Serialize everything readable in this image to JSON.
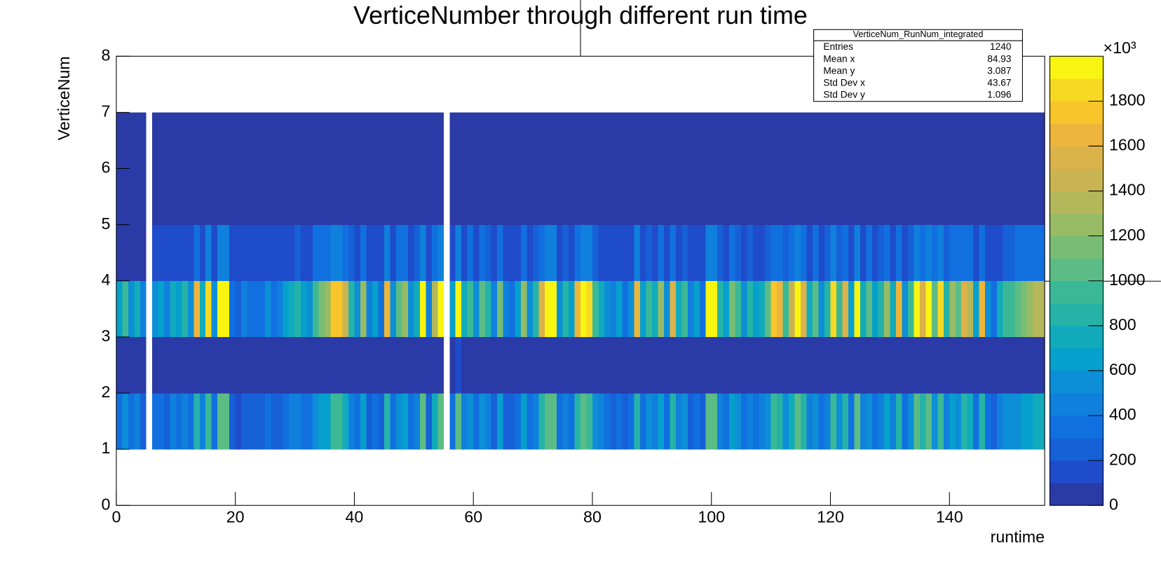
{
  "chart_data": {
    "type": "heatmap",
    "title": "VerticeNumber through different run time",
    "xlabel": "runtime",
    "ylabel": "VerticeNum",
    "xlim": [
      0,
      156
    ],
    "ylim": [
      0,
      8
    ],
    "xticks": [
      0,
      20,
      40,
      60,
      80,
      100,
      120,
      140
    ],
    "yticks": [
      0,
      1,
      2,
      3,
      4,
      5,
      6,
      7,
      8
    ],
    "ybins": [
      1,
      2,
      3,
      4,
      5,
      6,
      7
    ],
    "zlim": [
      0,
      2000
    ],
    "zticks": [
      0,
      200,
      400,
      600,
      800,
      1000,
      1200,
      1400,
      1600,
      1800
    ],
    "z_scale_label": "×10³",
    "palette": [
      "#2a3aa6",
      "#1f4ccb",
      "#1660d8",
      "#1170e0",
      "#0f80dc",
      "#0c8fd6",
      "#06a0cc",
      "#11abbb",
      "#25b3a8",
      "#3bb997",
      "#5bbc85",
      "#79bd74",
      "#98bb66",
      "#b4b85a",
      "#cab452",
      "#dcb24b",
      "#edb53b",
      "#f8c52a",
      "#f7d823",
      "#f8f510"
    ],
    "stats": {
      "title": "VerticeNum_RunNum_integrated",
      "rows": [
        {
          "label": "Entries",
          "value": 1240
        },
        {
          "label": "Mean x",
          "value": 84.93
        },
        {
          "label": "Mean y",
          "value": 3.087
        },
        {
          "label": "Std Dev x",
          "value": 43.67
        },
        {
          "label": "Std Dev y",
          "value": 1.096
        }
      ]
    },
    "values": [
      [
        300,
        500,
        300,
        400,
        200,
        null,
        300,
        300,
        200,
        400,
        300,
        400,
        300,
        800,
        400,
        900,
        300,
        1000,
        1000,
        200,
        100,
        200,
        200,
        200,
        200,
        300,
        200,
        200,
        300,
        400,
        400,
        300,
        300,
        500,
        600,
        600,
        900,
        900,
        700,
        400,
        300,
        600,
        200,
        300,
        200,
        800,
        300,
        500,
        600,
        300,
        400,
        1000,
        200,
        700,
        1000,
        null,
        300,
        1000,
        400,
        500,
        300,
        500,
        400,
        200,
        600,
        200,
        200,
        300,
        600,
        300,
        400,
        800,
        1000,
        1000,
        300,
        400,
        300,
        800,
        1000,
        900,
        500,
        400,
        300,
        200,
        300,
        200,
        300,
        800,
        300,
        500,
        400,
        600,
        300,
        800,
        400,
        500,
        200,
        300,
        200,
        1000,
        1000,
        400,
        300,
        600,
        500,
        300,
        400,
        300,
        400,
        500,
        900,
        800,
        500,
        700,
        1000,
        800,
        400,
        500,
        300,
        400,
        900,
        500,
        800,
        300,
        1000,
        400,
        500,
        300,
        400,
        600,
        400,
        800,
        300,
        500,
        1000,
        800,
        1000,
        500,
        900,
        400,
        600,
        500,
        800,
        700,
        300,
        800,
        300,
        200,
        400,
        500,
        500,
        500,
        600,
        600,
        700,
        700
      ],
      [
        30,
        30,
        30,
        30,
        30,
        null,
        30,
        30,
        30,
        30,
        30,
        30,
        30,
        30,
        30,
        30,
        30,
        30,
        30,
        30,
        30,
        30,
        30,
        30,
        30,
        30,
        30,
        30,
        30,
        30,
        30,
        30,
        30,
        30,
        30,
        30,
        30,
        30,
        30,
        30,
        30,
        30,
        30,
        30,
        30,
        30,
        30,
        30,
        30,
        30,
        30,
        30,
        30,
        30,
        30,
        null,
        30,
        150,
        30,
        30,
        30,
        30,
        30,
        30,
        30,
        30,
        30,
        30,
        30,
        30,
        30,
        30,
        30,
        30,
        30,
        30,
        30,
        30,
        30,
        30,
        30,
        30,
        30,
        30,
        30,
        30,
        30,
        30,
        30,
        30,
        30,
        30,
        30,
        30,
        30,
        30,
        30,
        30,
        30,
        30,
        30,
        30,
        30,
        30,
        30,
        30,
        30,
        30,
        30,
        30,
        30,
        30,
        30,
        30,
        30,
        30,
        30,
        30,
        30,
        30,
        30,
        30,
        30,
        30,
        30,
        30,
        30,
        30,
        30,
        30,
        30,
        30,
        30,
        30,
        30,
        30,
        30,
        30,
        30,
        30,
        30,
        30,
        30,
        30,
        30,
        30,
        30,
        30,
        30,
        30,
        30,
        30,
        30,
        30,
        30,
        30
      ],
      [
        600,
        900,
        500,
        700,
        400,
        null,
        500,
        600,
        400,
        700,
        600,
        800,
        500,
        1600,
        700,
        1800,
        500,
        1900,
        1900,
        300,
        200,
        400,
        300,
        300,
        300,
        500,
        300,
        400,
        600,
        700,
        800,
        600,
        500,
        900,
        1100,
        1200,
        1700,
        1700,
        1400,
        800,
        500,
        1200,
        400,
        600,
        300,
        1600,
        500,
        1000,
        1200,
        500,
        700,
        1900,
        400,
        1300,
        1900,
        null,
        600,
        2000,
        700,
        900,
        500,
        1000,
        800,
        400,
        1100,
        400,
        300,
        600,
        1200,
        500,
        800,
        1500,
        1950,
        1950,
        500,
        800,
        600,
        1600,
        1900,
        1800,
        900,
        700,
        500,
        400,
        600,
        300,
        500,
        1600,
        600,
        900,
        700,
        1200,
        500,
        1500,
        700,
        900,
        400,
        600,
        300,
        2000,
        2000,
        800,
        600,
        1100,
        900,
        500,
        800,
        600,
        700,
        1000,
        1700,
        1600,
        900,
        1400,
        1900,
        1500,
        700,
        1000,
        500,
        800,
        1800,
        900,
        1500,
        600,
        1950,
        700,
        1000,
        600,
        800,
        1200,
        700,
        1600,
        500,
        900,
        1950,
        1500,
        1900,
        1000,
        1800,
        800,
        1200,
        1000,
        1500,
        1300,
        600,
        1600,
        500,
        300,
        700,
        900,
        900,
        1000,
        1100,
        1200,
        1300,
        1300
      ],
      [
        50,
        50,
        50,
        50,
        50,
        null,
        100,
        100,
        100,
        100,
        100,
        100,
        100,
        350,
        100,
        400,
        100,
        400,
        400,
        100,
        100,
        100,
        100,
        100,
        100,
        100,
        100,
        100,
        100,
        100,
        200,
        100,
        100,
        300,
        300,
        300,
        400,
        400,
        300,
        200,
        100,
        300,
        100,
        100,
        100,
        400,
        100,
        300,
        300,
        100,
        200,
        400,
        100,
        300,
        400,
        null,
        100,
        400,
        100,
        300,
        100,
        300,
        200,
        100,
        300,
        100,
        100,
        100,
        300,
        100,
        200,
        350,
        400,
        400,
        100,
        200,
        100,
        350,
        400,
        400,
        200,
        100,
        100,
        100,
        100,
        100,
        100,
        400,
        100,
        200,
        100,
        300,
        100,
        350,
        100,
        200,
        100,
        100,
        100,
        400,
        400,
        200,
        100,
        300,
        200,
        100,
        200,
        100,
        100,
        200,
        350,
        350,
        200,
        300,
        400,
        350,
        100,
        300,
        100,
        200,
        400,
        200,
        350,
        100,
        400,
        100,
        300,
        100,
        200,
        300,
        100,
        350,
        100,
        200,
        400,
        350,
        400,
        300,
        400,
        200,
        300,
        300,
        350,
        300,
        100,
        350,
        100,
        100,
        100,
        200,
        200,
        300,
        300,
        300,
        300,
        300
      ],
      [
        30,
        30,
        30,
        30,
        30,
        null,
        30,
        30,
        30,
        30,
        30,
        30,
        30,
        30,
        30,
        30,
        30,
        30,
        30,
        30,
        30,
        30,
        30,
        30,
        30,
        30,
        30,
        30,
        30,
        30,
        30,
        30,
        30,
        30,
        30,
        30,
        30,
        30,
        30,
        30,
        30,
        30,
        30,
        30,
        30,
        30,
        30,
        30,
        30,
        30,
        30,
        30,
        30,
        30,
        30,
        null,
        30,
        30,
        30,
        30,
        30,
        30,
        30,
        30,
        30,
        30,
        30,
        30,
        30,
        30,
        30,
        30,
        30,
        30,
        30,
        30,
        30,
        30,
        30,
        30,
        30,
        30,
        30,
        30,
        30,
        30,
        30,
        30,
        30,
        30,
        30,
        30,
        30,
        30,
        30,
        30,
        30,
        30,
        30,
        30,
        30,
        30,
        30,
        30,
        30,
        30,
        30,
        30,
        30,
        30,
        30,
        30,
        30,
        30,
        30,
        30,
        30,
        30,
        30,
        30,
        30,
        30,
        30,
        30,
        30,
        30,
        30,
        30,
        30,
        30,
        30,
        30,
        30,
        30,
        30,
        30,
        30,
        30,
        30,
        30,
        30,
        30,
        30,
        30,
        30,
        30,
        30,
        30,
        30,
        30,
        30,
        30,
        30,
        30,
        30,
        30
      ],
      [
        30,
        30,
        30,
        30,
        30,
        null,
        30,
        30,
        30,
        30,
        30,
        30,
        30,
        30,
        30,
        30,
        30,
        30,
        30,
        30,
        30,
        30,
        30,
        30,
        30,
        30,
        30,
        30,
        30,
        30,
        30,
        30,
        30,
        30,
        30,
        30,
        30,
        30,
        30,
        30,
        30,
        30,
        30,
        30,
        30,
        30,
        30,
        30,
        30,
        30,
        30,
        30,
        30,
        30,
        30,
        null,
        30,
        30,
        30,
        30,
        30,
        30,
        30,
        30,
        30,
        30,
        30,
        30,
        30,
        30,
        30,
        30,
        30,
        30,
        30,
        30,
        30,
        30,
        30,
        30,
        30,
        30,
        30,
        30,
        30,
        30,
        30,
        30,
        30,
        30,
        30,
        30,
        30,
        30,
        30,
        30,
        30,
        30,
        30,
        30,
        30,
        30,
        30,
        30,
        30,
        30,
        30,
        30,
        30,
        30,
        30,
        30,
        30,
        30,
        30,
        30,
        30,
        30,
        30,
        30,
        30,
        30,
        30,
        30,
        30,
        30,
        30,
        30,
        30,
        30,
        30,
        30,
        30,
        30,
        30,
        30,
        30,
        30,
        30,
        30,
        30,
        30,
        30,
        30,
        30,
        30,
        30,
        30,
        30,
        30,
        30,
        30,
        30,
        30,
        30,
        30
      ]
    ]
  }
}
